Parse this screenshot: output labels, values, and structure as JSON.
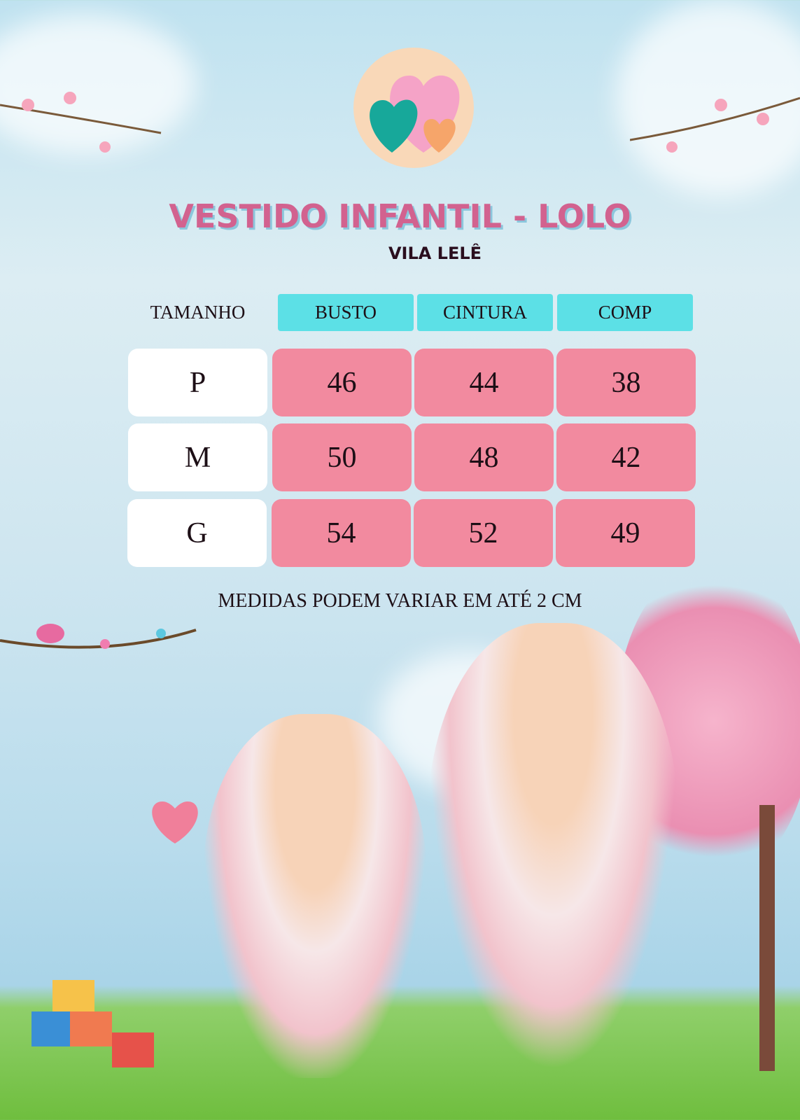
{
  "title": "VESTIDO INFANTIL - LOLO",
  "brand": "VILA LELÊ",
  "table": {
    "headers": [
      "TAMANHO",
      "BUSTO",
      "CINTURA",
      "COMP"
    ],
    "rows": [
      {
        "size": "P",
        "values": [
          "46",
          "44",
          "38"
        ]
      },
      {
        "size": "M",
        "values": [
          "50",
          "48",
          "42"
        ]
      },
      {
        "size": "G",
        "values": [
          "54",
          "52",
          "49"
        ]
      }
    ]
  },
  "note": "MEDIDAS PODEM VARIAR EM ATÉ 2 CM",
  "colors": {
    "title": "#d2628f",
    "header": "#5ce0e6",
    "value_cell": "#f28a9f",
    "size_cell": "#ffffff"
  },
  "icons": [
    "hearts-logo",
    "cherry-blossom-branch",
    "butterfly-icon",
    "bird-on-branch",
    "heart-character",
    "toy-blocks",
    "cherry-tree"
  ]
}
